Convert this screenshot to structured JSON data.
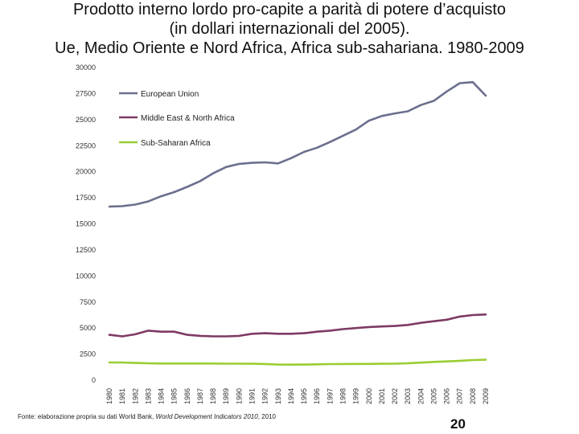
{
  "slide": {
    "title_line1": "Prodotto interno lordo pro-capite a parità di potere d’acquisto",
    "title_line2": "(in dollari internazionali del 2005).",
    "title_line3": "Ue, Medio Oriente e Nord Africa, Africa sub-sahariana. 1980-2009",
    "footnote_prefix": "Fonte: elaborazione propria su dati World Bank, ",
    "footnote_source": "World Development Indicators 2010",
    "footnote_suffix": ", 2010",
    "page_number": "20"
  },
  "chart_data": {
    "type": "line",
    "title": "",
    "xlabel": "",
    "ylabel": "",
    "ylim": [
      0,
      30000
    ],
    "yticks": [
      0,
      2500,
      5000,
      7500,
      10000,
      12500,
      15000,
      17500,
      20000,
      22500,
      25000,
      27500,
      30000
    ],
    "grid": false,
    "legend_position": "top-left",
    "x": [
      "1980",
      "1981",
      "1982",
      "1983",
      "1984",
      "1985",
      "1986",
      "1987",
      "1988",
      "1989",
      "1990",
      "1991",
      "1992",
      "1993",
      "1994",
      "1995",
      "1996",
      "1997",
      "1998",
      "1999",
      "2000",
      "2001",
      "2002",
      "2003",
      "2004",
      "2005",
      "2006",
      "2007",
      "2008",
      "2009"
    ],
    "series": [
      {
        "name": "European Union",
        "color": "#6b6f8e",
        "values": [
          16650,
          16700,
          16850,
          17150,
          17650,
          18050,
          18550,
          19100,
          19850,
          20450,
          20750,
          20850,
          20900,
          20800,
          21300,
          21900,
          22300,
          22850,
          23450,
          24050,
          24900,
          25350,
          25600,
          25800,
          26400,
          26800,
          27700,
          28500,
          28600,
          27300
        ]
      },
      {
        "name": "Middle East & North Africa",
        "color": "#7e3a64",
        "values": [
          4350,
          4200,
          4400,
          4750,
          4650,
          4650,
          4350,
          4250,
          4200,
          4200,
          4250,
          4450,
          4500,
          4450,
          4450,
          4500,
          4650,
          4750,
          4900,
          5000,
          5100,
          5150,
          5200,
          5300,
          5500,
          5650,
          5800,
          6100,
          6250,
          6300
        ]
      },
      {
        "name": "Sub-Saharan Africa",
        "color": "#9acd32",
        "values": [
          1700,
          1700,
          1650,
          1620,
          1600,
          1600,
          1600,
          1600,
          1600,
          1580,
          1580,
          1570,
          1550,
          1500,
          1490,
          1500,
          1520,
          1540,
          1550,
          1560,
          1560,
          1570,
          1580,
          1620,
          1680,
          1750,
          1800,
          1860,
          1930,
          1960
        ]
      }
    ]
  }
}
